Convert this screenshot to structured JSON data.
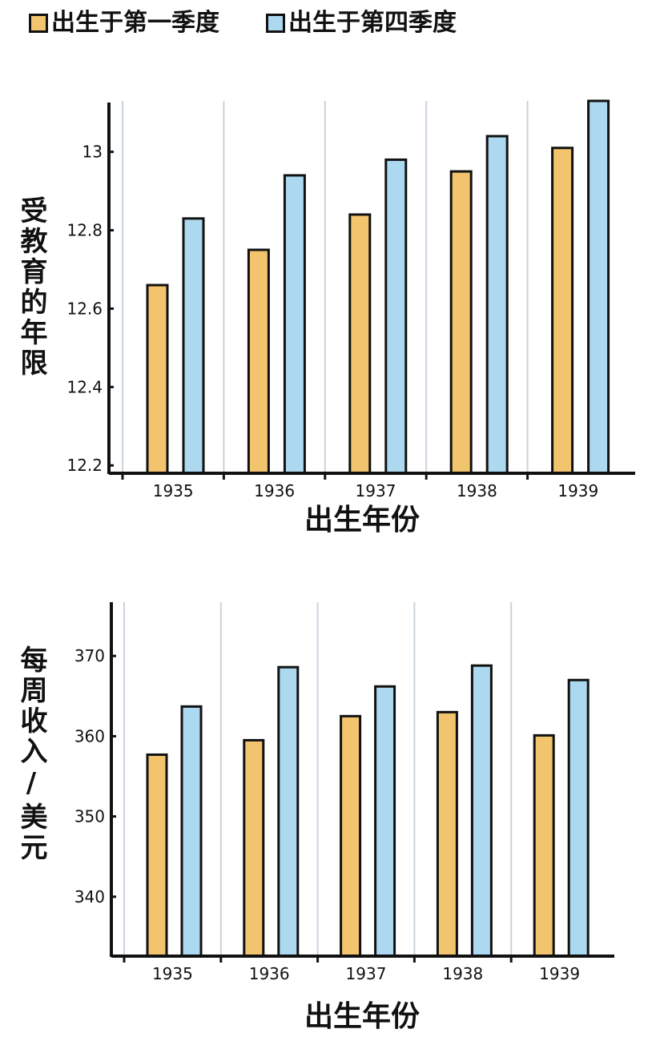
{
  "legend": {
    "q1_label": "出生于第一季度",
    "q4_label": "出生于第四季度"
  },
  "colors": {
    "q1": "#f2c46d",
    "q4": "#acd8f0",
    "grid": "#c9d3dc",
    "axis": "#111111"
  },
  "chart_data": [
    {
      "type": "bar",
      "categories": [
        "1935",
        "1936",
        "1937",
        "1938",
        "1939"
      ],
      "series": [
        {
          "name": "出生于第一季度",
          "values": [
            12.66,
            12.75,
            12.84,
            12.95,
            13.01
          ]
        },
        {
          "name": "出生于第四季度",
          "values": [
            12.83,
            12.94,
            12.98,
            13.04,
            13.13
          ]
        }
      ],
      "ylabel": "受教育的年限",
      "xlabel": "出生年份",
      "yticks": [
        "12.2",
        "12.4",
        "12.6",
        "12.8",
        "13"
      ],
      "ylim": [
        12.18,
        13.13
      ],
      "grid": "vertical"
    },
    {
      "type": "bar",
      "categories": [
        "1935",
        "1936",
        "1937",
        "1938",
        "1939"
      ],
      "series": [
        {
          "name": "出生于第一季度",
          "values": [
            357.7,
            359.5,
            362.5,
            363.0,
            360.1
          ]
        },
        {
          "name": "出生于第四季度",
          "values": [
            363.7,
            368.6,
            366.2,
            368.8,
            367.0
          ]
        }
      ],
      "ylabel": "每周收入/美元",
      "xlabel": "出生年份",
      "yticks": [
        "340",
        "350",
        "360",
        "370"
      ],
      "ylim": [
        332.6,
        376.7
      ],
      "grid": "vertical"
    }
  ]
}
